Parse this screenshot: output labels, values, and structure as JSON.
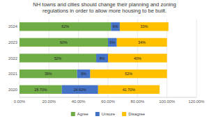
{
  "chart_data": {
    "type": "bar",
    "orientation": "horizontal",
    "stacked": true,
    "data_labels": true,
    "grid": true,
    "legend": "bottom",
    "title": "NH towns and cities should change their planning and zoning\nregulations in order to allow more housing to be built.",
    "categories": [
      "2020",
      "2021",
      "2022",
      "2023",
      "2024"
    ],
    "series": [
      {
        "name": "Agree",
        "color": "#70ad47",
        "values": [
          28.7,
          39,
          52,
          60,
          62
        ],
        "value_labels": [
          "28.70%",
          "39%",
          "52%",
          "60%",
          "62%"
        ]
      },
      {
        "name": "Unsure",
        "color": "#4472c4",
        "values": [
          24.6,
          9,
          8,
          6,
          6
        ],
        "value_labels": [
          "24.60%",
          "9%",
          "8%",
          "6%",
          "6%"
        ]
      },
      {
        "name": "Disagree",
        "color": "#ffc000",
        "values": [
          41.7,
          52,
          40,
          34,
          33
        ],
        "value_labels": [
          "41.70%",
          "52%",
          "40%",
          "34%",
          "33%"
        ]
      }
    ],
    "xlim": [
      0,
      120
    ],
    "xticks": [
      {
        "value": 0,
        "label": "0.00%"
      },
      {
        "value": 20,
        "label": "20.00%"
      },
      {
        "value": 40,
        "label": "40.00%"
      },
      {
        "value": 60,
        "label": "60.00%"
      },
      {
        "value": 80,
        "label": "80.00%"
      },
      {
        "value": 100,
        "label": "100.00%"
      },
      {
        "value": 120,
        "label": "120.00%"
      }
    ]
  }
}
